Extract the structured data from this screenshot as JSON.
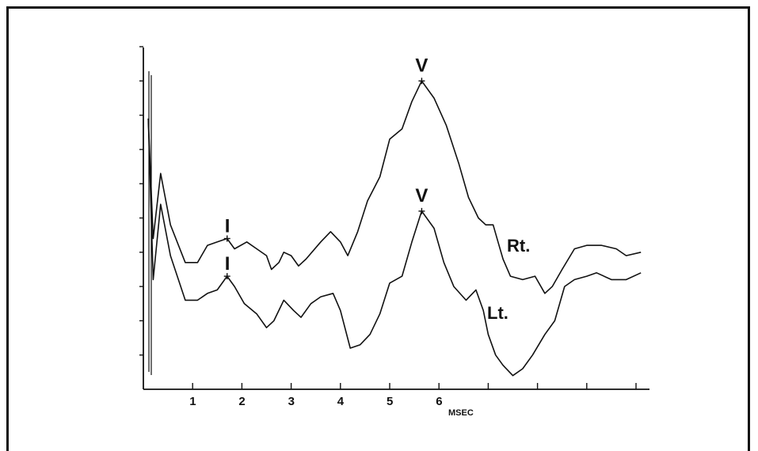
{
  "chart_data": {
    "type": "line",
    "xlabel": "MSEC",
    "x_ticks": [
      "1",
      "2",
      "3",
      "4",
      "5",
      "6"
    ],
    "xlim": [
      0,
      10.2
    ],
    "ylim": [
      0,
      10
    ],
    "grid": false,
    "series": [
      {
        "name": "Rt.",
        "points": [
          [
            0.1,
            7.9
          ],
          [
            0.2,
            4.4
          ],
          [
            0.35,
            6.3
          ],
          [
            0.55,
            4.8
          ],
          [
            0.85,
            3.7
          ],
          [
            1.1,
            3.7
          ],
          [
            1.3,
            4.2
          ],
          [
            1.5,
            4.3
          ],
          [
            1.7,
            4.4
          ],
          [
            1.85,
            4.1
          ],
          [
            2.1,
            4.3
          ],
          [
            2.3,
            4.1
          ],
          [
            2.5,
            3.9
          ],
          [
            2.6,
            3.5
          ],
          [
            2.75,
            3.7
          ],
          [
            2.85,
            4.0
          ],
          [
            3.0,
            3.9
          ],
          [
            3.15,
            3.6
          ],
          [
            3.3,
            3.8
          ],
          [
            3.6,
            4.3
          ],
          [
            3.8,
            4.6
          ],
          [
            4.0,
            4.3
          ],
          [
            4.15,
            3.9
          ],
          [
            4.35,
            4.6
          ],
          [
            4.55,
            5.5
          ],
          [
            4.8,
            6.2
          ],
          [
            5.0,
            7.3
          ],
          [
            5.25,
            7.6
          ],
          [
            5.45,
            8.4
          ],
          [
            5.65,
            9.0
          ],
          [
            5.9,
            8.5
          ],
          [
            6.15,
            7.7
          ],
          [
            6.4,
            6.6
          ],
          [
            6.6,
            5.6
          ],
          [
            6.8,
            5.0
          ],
          [
            6.95,
            4.8
          ],
          [
            7.1,
            4.8
          ],
          [
            7.2,
            4.3
          ],
          [
            7.3,
            3.8
          ],
          [
            7.45,
            3.3
          ],
          [
            7.7,
            3.2
          ],
          [
            7.95,
            3.3
          ],
          [
            8.15,
            2.8
          ],
          [
            8.3,
            3.0
          ],
          [
            8.5,
            3.5
          ],
          [
            8.75,
            4.1
          ],
          [
            9.0,
            4.2
          ],
          [
            9.3,
            4.2
          ],
          [
            9.6,
            4.1
          ],
          [
            9.8,
            3.9
          ],
          [
            10.1,
            4.0
          ]
        ]
      },
      {
        "name": "Lt.",
        "points": [
          [
            0.1,
            7.9
          ],
          [
            0.2,
            3.2
          ],
          [
            0.35,
            5.4
          ],
          [
            0.55,
            3.9
          ],
          [
            0.85,
            2.6
          ],
          [
            1.1,
            2.6
          ],
          [
            1.3,
            2.8
          ],
          [
            1.5,
            2.9
          ],
          [
            1.7,
            3.3
          ],
          [
            1.85,
            3.0
          ],
          [
            2.05,
            2.5
          ],
          [
            2.3,
            2.2
          ],
          [
            2.5,
            1.8
          ],
          [
            2.65,
            2.0
          ],
          [
            2.85,
            2.6
          ],
          [
            3.05,
            2.3
          ],
          [
            3.2,
            2.1
          ],
          [
            3.4,
            2.5
          ],
          [
            3.6,
            2.7
          ],
          [
            3.85,
            2.8
          ],
          [
            4.0,
            2.3
          ],
          [
            4.2,
            1.2
          ],
          [
            4.4,
            1.3
          ],
          [
            4.6,
            1.6
          ],
          [
            4.8,
            2.2
          ],
          [
            5.0,
            3.1
          ],
          [
            5.25,
            3.3
          ],
          [
            5.45,
            4.3
          ],
          [
            5.65,
            5.2
          ],
          [
            5.9,
            4.7
          ],
          [
            6.1,
            3.7
          ],
          [
            6.3,
            3.0
          ],
          [
            6.55,
            2.6
          ],
          [
            6.75,
            2.9
          ],
          [
            6.9,
            2.3
          ],
          [
            7.0,
            1.6
          ],
          [
            7.15,
            1.0
          ],
          [
            7.3,
            0.7
          ],
          [
            7.5,
            0.4
          ],
          [
            7.7,
            0.6
          ],
          [
            7.9,
            1.0
          ],
          [
            8.15,
            1.6
          ],
          [
            8.35,
            2.0
          ],
          [
            8.55,
            3.0
          ],
          [
            8.75,
            3.2
          ],
          [
            9.0,
            3.3
          ],
          [
            9.2,
            3.4
          ],
          [
            9.5,
            3.2
          ],
          [
            9.8,
            3.2
          ],
          [
            10.1,
            3.4
          ]
        ]
      }
    ],
    "peak_labels": [
      {
        "text": "V",
        "series": "Rt.",
        "x": 5.65,
        "y": 9.0
      },
      {
        "text": "I",
        "series": "Rt.",
        "x": 1.7,
        "y": 4.4
      },
      {
        "text": "V",
        "series": "Lt.",
        "x": 5.65,
        "y": 5.2
      },
      {
        "text": "I",
        "series": "Lt.",
        "x": 1.7,
        "y": 3.3
      }
    ]
  }
}
